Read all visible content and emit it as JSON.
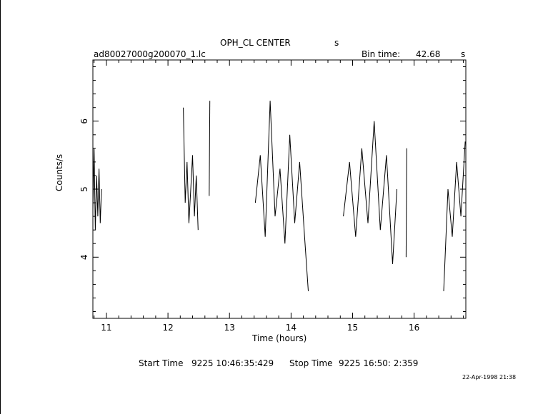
{
  "header": {
    "object": "OPH_CL CENTER",
    "unit_s": "s",
    "file": "ad80027000g200070_1.lc",
    "bin_label": "Bin time:",
    "bin_value": "42.68",
    "bin_unit": "s"
  },
  "footer": {
    "start_label": "Start Time",
    "start_value": "9225 10:46:35:429",
    "stop_label": "Stop Time",
    "stop_value": "9225 16:50: 2:359",
    "stamp": "22-Apr-1998 21:38"
  },
  "chart_data": {
    "type": "line",
    "xlabel": "Time (hours)",
    "ylabel": "Counts/s",
    "xlim": [
      10.78,
      16.84
    ],
    "ylim": [
      3.1,
      6.9
    ],
    "xticks": [
      11,
      12,
      13,
      14,
      15,
      16
    ],
    "yticks": [
      4,
      5,
      6
    ],
    "grid": false,
    "segments": [
      {
        "x": [
          10.78,
          10.8,
          10.82,
          10.84,
          10.86,
          10.88,
          10.9,
          10.92
        ],
        "y": [
          4.7,
          5.6,
          4.4,
          5.2,
          4.6,
          5.3,
          4.5,
          5.0
        ]
      },
      {
        "x": [
          12.25,
          12.28,
          12.31,
          12.34,
          12.37,
          12.4,
          12.43,
          12.46,
          12.49
        ],
        "y": [
          6.2,
          4.8,
          5.4,
          4.5,
          5.0,
          5.5,
          4.6,
          5.2,
          4.4
        ]
      },
      {
        "x": [
          12.67,
          12.68
        ],
        "y": [
          4.9,
          6.3
        ]
      },
      {
        "x": [
          13.42,
          13.5,
          13.58,
          13.66,
          13.74,
          13.82,
          13.9,
          13.98,
          14.06,
          14.14,
          14.22,
          14.28
        ],
        "y": [
          4.8,
          5.5,
          4.3,
          6.3,
          4.6,
          5.3,
          4.2,
          5.8,
          4.5,
          5.4,
          4.3,
          3.5
        ]
      },
      {
        "x": [
          14.85,
          14.95,
          15.05,
          15.15,
          15.25,
          15.35,
          15.45,
          15.55,
          15.65,
          15.72
        ],
        "y": [
          4.6,
          5.4,
          4.3,
          5.6,
          4.5,
          6.0,
          4.4,
          5.5,
          3.9,
          5.0
        ]
      },
      {
        "x": [
          15.87,
          15.88
        ],
        "y": [
          4.0,
          5.6
        ]
      },
      {
        "x": [
          16.48,
          16.55,
          16.62,
          16.69,
          16.76,
          16.83
        ],
        "y": [
          3.5,
          5.0,
          4.3,
          5.4,
          4.6,
          5.7
        ]
      }
    ]
  }
}
